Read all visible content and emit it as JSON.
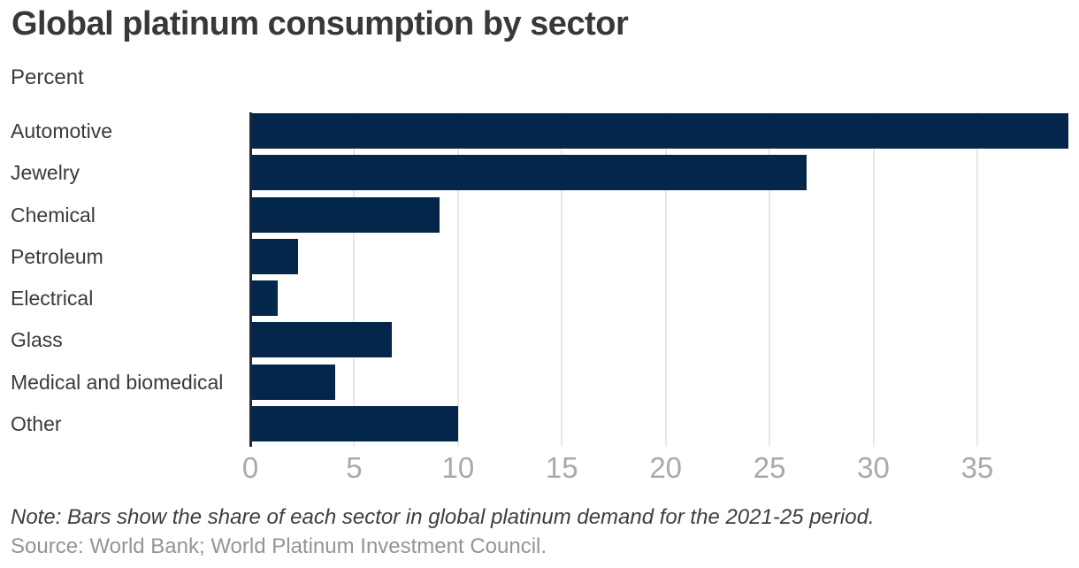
{
  "header": {
    "title": "Global platinum consumption by sector",
    "subtitle": "Percent"
  },
  "chart_data": {
    "type": "bar",
    "orientation": "horizontal",
    "title": "Global platinum consumption by sector",
    "unit_label": "Percent",
    "categories": [
      "Automotive",
      "Jewelry",
      "Chemical",
      "Petroleum",
      "Electrical",
      "Glass",
      "Medical and biomedical",
      "Other"
    ],
    "values": [
      39.4,
      26.8,
      9.1,
      2.3,
      1.3,
      6.8,
      4.1,
      10.0
    ],
    "xlabel": "",
    "ylabel": "",
    "xlim": [
      0,
      39.9
    ],
    "xticks": [
      0,
      5,
      10,
      15,
      20,
      25,
      30,
      35
    ],
    "grid": true,
    "legend": "none",
    "colors": {
      "bar": "#04264a",
      "gridline": "#e8e8e8",
      "axis_line": "#27272e",
      "tick_label": "#a9a9a9",
      "category_label": "#3a3a3a",
      "title": "#383838"
    }
  },
  "footer": {
    "note": "Note: Bars show the share of each sector in global platinum demand for the 2021-25 period.",
    "source": "Source: World Bank; World Platinum Investment Council."
  }
}
